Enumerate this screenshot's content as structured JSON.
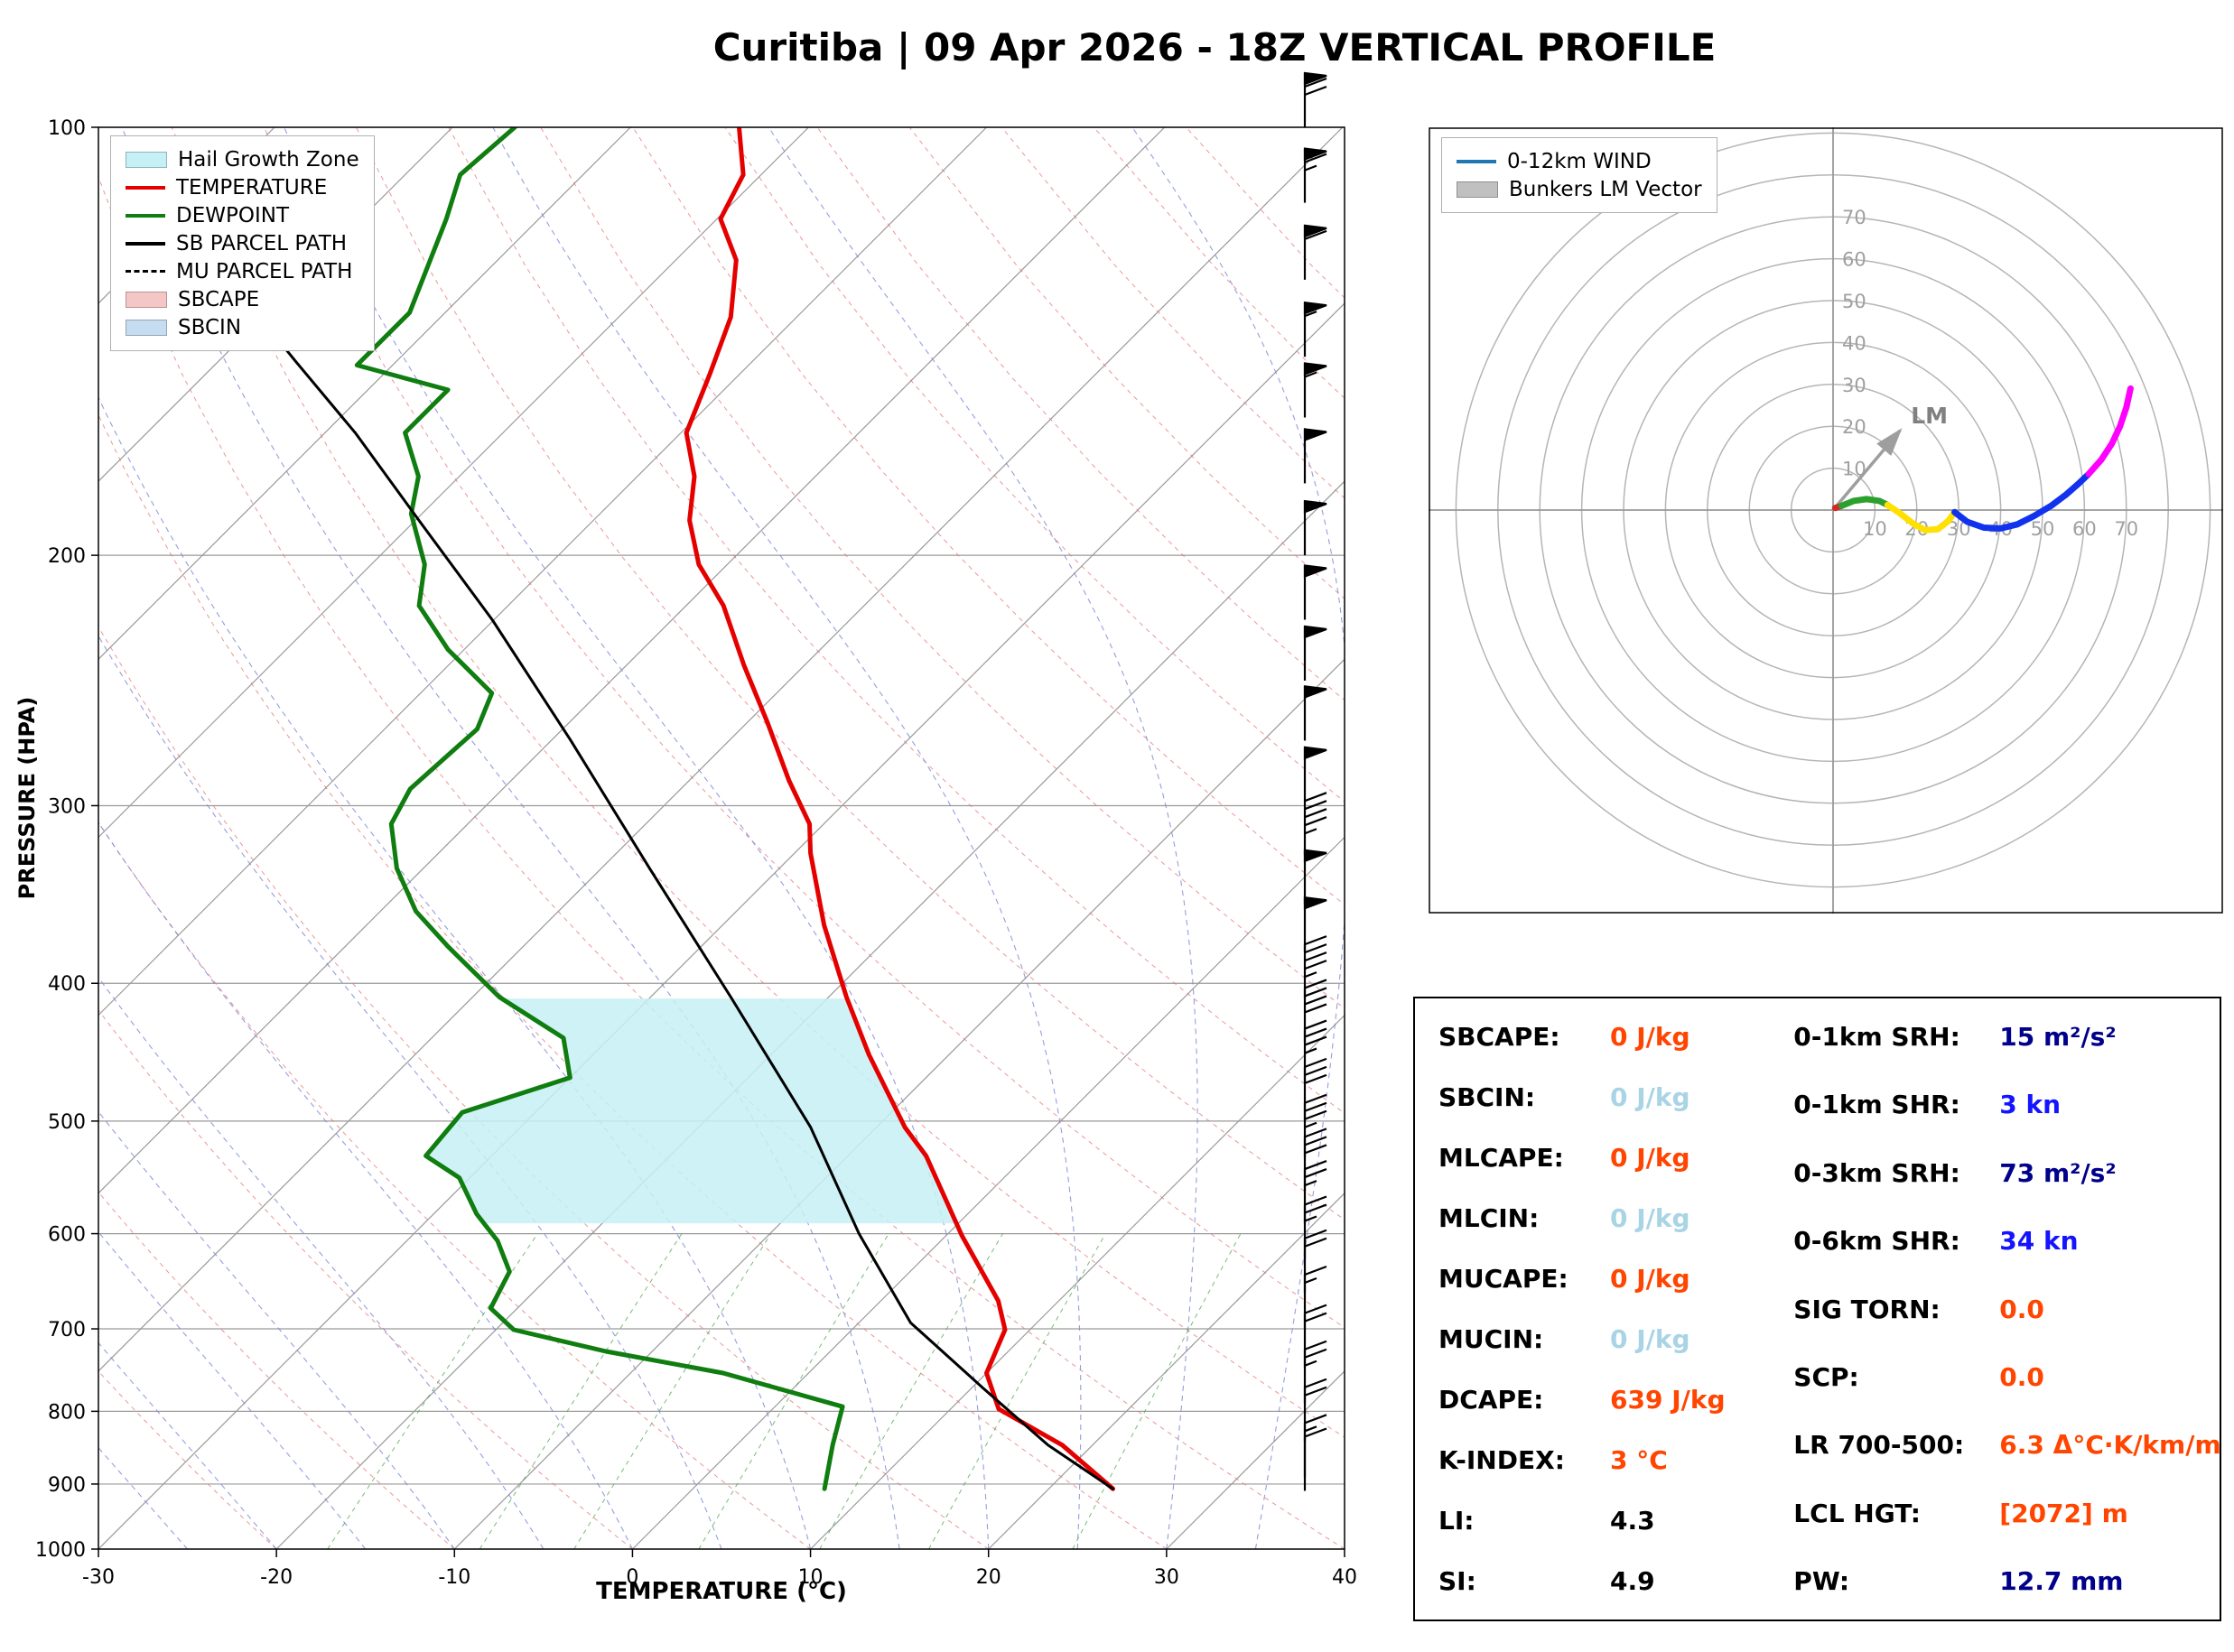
{
  "title": "Curitiba | 09 Apr 2026 - 18Z VERTICAL PROFILE",
  "chart_data": [
    {
      "type": "line",
      "name": "skew_t_log_p_diagram",
      "x_axis": {
        "label": "TEMPERATURE (°C)",
        "ticks": [
          -30,
          -20,
          -10,
          0,
          10,
          20,
          30,
          40
        ],
        "range": [
          -30,
          40
        ]
      },
      "y_axis": {
        "label": "PRESSURE (HPA)",
        "ticks": [
          100,
          200,
          300,
          400,
          500,
          600,
          700,
          800,
          900,
          1000
        ],
        "range": [
          100,
          1000
        ],
        "scale": "log"
      },
      "legend": [
        {
          "label": "Hail Growth Zone",
          "swatch": "patch",
          "color": "#c5f0f5"
        },
        {
          "label": "TEMPERATURE",
          "swatch": "line",
          "color": "#e50000"
        },
        {
          "label": "DEWPOINT",
          "swatch": "line",
          "color": "#0f7d0f"
        },
        {
          "label": "SB PARCEL PATH",
          "swatch": "line",
          "color": "#000000"
        },
        {
          "label": "MU PARCEL PATH",
          "swatch": "dash",
          "color": "#000000"
        },
        {
          "label": "SBCAPE",
          "swatch": "patch",
          "color": "#f5c6c6"
        },
        {
          "label": "SBCIN",
          "swatch": "patch",
          "color": "#c6dcf0"
        }
      ],
      "series": [
        {
          "name": "TEMPERATURE",
          "color": "#e50000",
          "width": 5,
          "points": [
            [
              907,
              23.6
            ],
            [
              845,
              18.3
            ],
            [
              797,
              12.7
            ],
            [
              752,
              10.0
            ],
            [
              701,
              8.6
            ],
            [
              669,
              6.6
            ],
            [
              602,
              0.9
            ],
            [
              529,
              -5.6
            ],
            [
              505,
              -8.4
            ],
            [
              449,
              -14.5
            ],
            [
              409,
              -19.0
            ],
            [
              364,
              -24.3
            ],
            [
              324,
              -29.1
            ],
            [
              309,
              -30.8
            ],
            [
              288,
              -34.4
            ],
            [
              262,
              -38.9
            ],
            [
              239,
              -43.4
            ],
            [
              217,
              -47.9
            ],
            [
              203,
              -51.6
            ],
            [
              189,
              -54.6
            ],
            [
              176,
              -56.8
            ],
            [
              164,
              -59.7
            ],
            [
              149,
              -61.7
            ],
            [
              136,
              -63.7
            ],
            [
              124,
              -66.6
            ],
            [
              116,
              -69.8
            ],
            [
              108,
              -71.0
            ],
            [
              100,
              -73.9
            ]
          ]
        },
        {
          "name": "DEWPOINT",
          "color": "#0f7d0f",
          "width": 5,
          "points": [
            [
              907,
              7.4
            ],
            [
              845,
              5.4
            ],
            [
              794,
              3.8
            ],
            [
              752,
              -4.8
            ],
            [
              726,
              -12.6
            ],
            [
              701,
              -19.0
            ],
            [
              677,
              -21.5
            ],
            [
              638,
              -22.5
            ],
            [
              607,
              -24.9
            ],
            [
              581,
              -27.6
            ],
            [
              548,
              -30.6
            ],
            [
              529,
              -33.7
            ],
            [
              493,
              -34.1
            ],
            [
              466,
              -30.0
            ],
            [
              437,
              -32.6
            ],
            [
              409,
              -38.5
            ],
            [
              377,
              -44.2
            ],
            [
              356,
              -48.0
            ],
            [
              332,
              -51.5
            ],
            [
              309,
              -54.3
            ],
            [
              292,
              -55.2
            ],
            [
              265,
              -54.8
            ],
            [
              250,
              -56.0
            ],
            [
              233,
              -60.9
            ],
            [
              217,
              -65.0
            ],
            [
              203,
              -67.0
            ],
            [
              187,
              -70.6
            ],
            [
              176,
              -72.3
            ],
            [
              164,
              -75.5
            ],
            [
              153,
              -75.5
            ],
            [
              147,
              -82.0
            ],
            [
              135,
              -82.0
            ],
            [
              116,
              -85.2
            ],
            [
              108,
              -86.9
            ],
            [
              100,
              -86.5
            ]
          ]
        },
        {
          "name": "SB PARCEL PATH",
          "color": "#000000",
          "width": 3,
          "points": [
            [
              907,
              23.6
            ],
            [
              845,
              17.5
            ],
            [
              770,
              10.6
            ],
            [
              693,
              2.9
            ],
            [
              600,
              -5.0
            ],
            [
              505,
              -13.7
            ],
            [
              409,
              -25.5
            ],
            [
              332,
              -37.3
            ],
            [
              269,
              -49.1
            ],
            [
              222,
              -60.1
            ],
            [
              189,
              -69.8
            ],
            [
              164,
              -78.3
            ],
            [
              146,
              -85.7
            ],
            [
              130,
              -93.0
            ],
            [
              116,
              -99.9
            ],
            [
              103,
              -106.7
            ]
          ]
        },
        {
          "name": "MU PARCEL PATH",
          "color": "#000000",
          "width": 2.5,
          "dashed": true,
          "points": [
            [
              907,
              23.6
            ],
            [
              845,
              17.5
            ],
            [
              770,
              10.6
            ],
            [
              693,
              2.9
            ],
            [
              600,
              -5.0
            ],
            [
              505,
              -13.7
            ],
            [
              409,
              -25.5
            ],
            [
              332,
              -37.3
            ],
            [
              269,
              -49.1
            ],
            [
              222,
              -60.1
            ],
            [
              189,
              -69.8
            ],
            [
              164,
              -78.3
            ],
            [
              146,
              -85.7
            ],
            [
              130,
              -93.0
            ],
            [
              116,
              -99.9
            ],
            [
              103,
              -106.7
            ]
          ]
        }
      ],
      "hail_growth_zone": {
        "pressure_top": 410,
        "pressure_bottom": 590
      },
      "wind_barbs_kn": [
        [
          100,
          70
        ],
        [
          113,
          65
        ],
        [
          128,
          60
        ],
        [
          145,
          55
        ],
        [
          160,
          55
        ],
        [
          178,
          50
        ],
        [
          200,
          50
        ],
        [
          222,
          50
        ],
        [
          245,
          50
        ],
        [
          270,
          50
        ],
        [
          298,
          50
        ],
        [
          325,
          45
        ],
        [
          352,
          50
        ],
        [
          380,
          50
        ],
        [
          410,
          45
        ],
        [
          440,
          40
        ],
        [
          470,
          35
        ],
        [
          500,
          30
        ],
        [
          530,
          35
        ],
        [
          560,
          30
        ],
        [
          590,
          25
        ],
        [
          625,
          25
        ],
        [
          660,
          20
        ],
        [
          700,
          15
        ],
        [
          745,
          20
        ],
        [
          790,
          25
        ],
        [
          840,
          20
        ],
        [
          890,
          15
        ],
        [
          910,
          10
        ]
      ]
    },
    {
      "type": "line",
      "name": "hodograph",
      "ring_interval_kn": 10,
      "ring_labels": [
        10,
        20,
        30,
        40,
        50,
        60,
        70
      ],
      "segments": [
        {
          "name": "sfc",
          "color": "#d62728",
          "points": [
            [
              0.5,
              0.5
            ],
            [
              2,
              1
            ]
          ]
        },
        {
          "name": "0-1km",
          "color": "#2ca02c",
          "points": [
            [
              2,
              1
            ],
            [
              5,
              2.2
            ],
            [
              8,
              2.6
            ],
            [
              11,
              2.2
            ],
            [
              13,
              1.2
            ]
          ]
        },
        {
          "name": "1-3km",
          "color": "#ffe000",
          "points": [
            [
              13,
              1.2
            ],
            [
              16,
              -0.8
            ],
            [
              19,
              -3.2
            ],
            [
              22,
              -4.8
            ],
            [
              25,
              -4.6
            ],
            [
              27.5,
              -2.6
            ],
            [
              29,
              -0.5
            ]
          ]
        },
        {
          "name": "3-6km",
          "color": "#1133ee",
          "points": [
            [
              29,
              -0.5
            ],
            [
              32,
              -2.8
            ],
            [
              36,
              -4.2
            ],
            [
              40,
              -4.4
            ],
            [
              44,
              -3.4
            ],
            [
              48,
              -1.4
            ],
            [
              52,
              1
            ],
            [
              55.5,
              3.6
            ],
            [
              58.5,
              6.2
            ],
            [
              61,
              8.6
            ]
          ]
        },
        {
          "name": "6-12km",
          "color": "#ff00ff",
          "points": [
            [
              61,
              8.6
            ],
            [
              64,
              12
            ],
            [
              66.5,
              15.8
            ],
            [
              68.5,
              20
            ],
            [
              70,
              24.5
            ],
            [
              71,
              29
            ]
          ]
        }
      ],
      "lm_vector": {
        "u": 16,
        "v": 19,
        "label": "LM"
      },
      "legend": [
        {
          "label": "0-12km WIND",
          "swatch": "line",
          "color": "#1f77b4"
        },
        {
          "label": "Bunkers LM Vector",
          "swatch": "patch",
          "color": "#c0c0c0"
        }
      ]
    }
  ],
  "table": {
    "left": [
      {
        "label": "SBCAPE:",
        "value": "0 J/kg",
        "color": "#ff4500"
      },
      {
        "label": "SBCIN:",
        "value": "0 J/kg",
        "color": "#a9d4e5"
      },
      {
        "label": "MLCAPE:",
        "value": "0 J/kg",
        "color": "#ff4500"
      },
      {
        "label": "MLCIN:",
        "value": "0 J/kg",
        "color": "#a9d4e5"
      },
      {
        "label": "MUCAPE:",
        "value": "0 J/kg",
        "color": "#ff4500"
      },
      {
        "label": "MUCIN:",
        "value": "0 J/kg",
        "color": "#a9d4e5"
      },
      {
        "label": "DCAPE:",
        "value": "639 J/kg",
        "color": "#ff4500"
      },
      {
        "label": "K-INDEX:",
        "value": "3 °C",
        "color": "#ff4500"
      },
      {
        "label": "LI:",
        "value": "4.3",
        "color": "#000000"
      },
      {
        "label": "SI:",
        "value": "4.9",
        "color": "#000000"
      }
    ],
    "right": [
      {
        "label": "0-1km SRH:",
        "value": "15 m²/s²",
        "color": "#00008b"
      },
      {
        "label": "0-1km SHR:",
        "value": "3 kn",
        "color": "#1414ff"
      },
      {
        "label": "0-3km SRH:",
        "value": "73 m²/s²",
        "color": "#00008b"
      },
      {
        "label": "0-6km SHR:",
        "value": "34 kn",
        "color": "#1414ff"
      },
      {
        "label": "SIG TORN:",
        "value": "0.0",
        "color": "#ff4500"
      },
      {
        "label": "SCP:",
        "value": "0.0",
        "color": "#ff4500"
      },
      {
        "label": "LR 700-500:",
        "value": "6.3 Δ°C·K/km/m",
        "color": "#ff4500"
      },
      {
        "label": "LCL HGT:",
        "value": "[2072] m",
        "color": "#ff4500"
      },
      {
        "label": "PW:",
        "value": "12.7 mm",
        "color": "#00008b"
      }
    ]
  }
}
